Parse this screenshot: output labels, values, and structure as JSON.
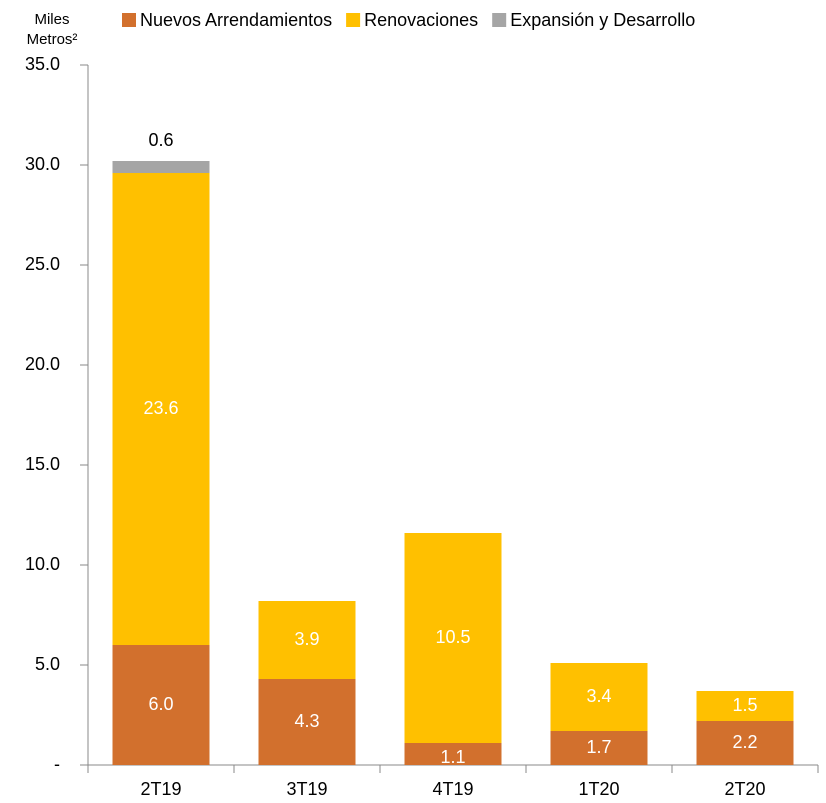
{
  "chart_data": {
    "type": "stacked_bar",
    "y_label": [
      "Miles",
      "Metros²"
    ],
    "categories": [
      "2T19",
      "3T19",
      "4T19",
      "1T20",
      "2T20"
    ],
    "series": [
      {
        "name": "Nuevos Arrendamientos",
        "color": "#d2702d",
        "label_color": "#ffffff",
        "values": [
          6.0,
          4.3,
          1.1,
          1.7,
          2.2
        ],
        "value_labels": [
          "6.0",
          "4.3",
          "1.1",
          "1.7",
          "2.2"
        ]
      },
      {
        "name": "Renovaciones",
        "color": "#ffc000",
        "label_color": "#ffffff",
        "values": [
          23.6,
          3.9,
          10.5,
          3.4,
          1.5
        ],
        "value_labels": [
          "23.6",
          "3.9",
          "10.5",
          "3.4",
          "1.5"
        ]
      },
      {
        "name": "Expansión y Desarrollo",
        "color": "#a5a5a5",
        "label_color": "#000000",
        "label_position": "above",
        "values": [
          0.6,
          null,
          null,
          null,
          null
        ],
        "value_labels": [
          "0.6",
          null,
          null,
          null,
          null
        ]
      }
    ],
    "ylim": [
      0,
      35
    ],
    "yticks": [
      {
        "value": 0,
        "label": "-"
      },
      {
        "value": 5,
        "label": "5.0"
      },
      {
        "value": 10,
        "label": "10.0"
      },
      {
        "value": 15,
        "label": "15.0"
      },
      {
        "value": 20,
        "label": "20.0"
      },
      {
        "value": 25,
        "label": "25.0"
      },
      {
        "value": 30,
        "label": "30.0"
      },
      {
        "value": 35,
        "label": "35.0"
      }
    ],
    "grid": false,
    "legend": "top"
  }
}
